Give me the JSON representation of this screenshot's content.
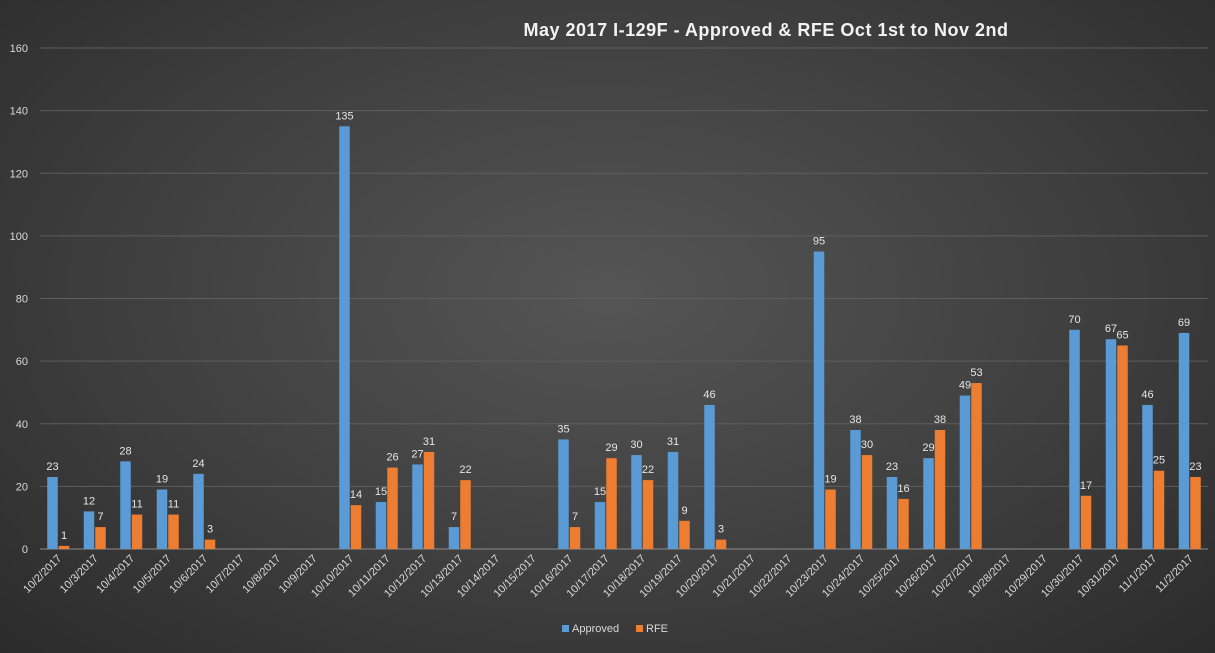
{
  "chart_data": {
    "type": "bar",
    "title": "May 2017 I-129F - Approved  & RFE Oct 1st to Nov 2nd",
    "xlabel": "",
    "ylabel": "",
    "ylim": [
      0,
      160
    ],
    "yticks": [
      0,
      20,
      40,
      60,
      80,
      100,
      120,
      140,
      160
    ],
    "grid": true,
    "legend": "bottom",
    "categories": [
      "10/2/2017",
      "10/3/2017",
      "10/4/2017",
      "10/5/2017",
      "10/6/2017",
      "10/7/2017",
      "10/8/2017",
      "10/9/2017",
      "10/10/2017",
      "10/11/2017",
      "10/12/2017",
      "10/13/2017",
      "10/14/2017",
      "10/15/2017",
      "10/16/2017",
      "10/17/2017",
      "10/18/2017",
      "10/19/2017",
      "10/20/2017",
      "10/21/2017",
      "10/22/2017",
      "10/23/2017",
      "10/24/2017",
      "10/25/2017",
      "10/26/2017",
      "10/27/2017",
      "10/28/2017",
      "10/29/2017",
      "10/30/2017",
      "10/31/2017",
      "11/1/2017",
      "11/2/2017"
    ],
    "series": [
      {
        "name": "Approved",
        "color": "#5b9bd5",
        "values": [
          23,
          12,
          28,
          19,
          24,
          null,
          null,
          null,
          135,
          15,
          27,
          7,
          null,
          null,
          35,
          15,
          30,
          31,
          46,
          null,
          null,
          95,
          38,
          23,
          29,
          49,
          null,
          null,
          70,
          67,
          46,
          69
        ]
      },
      {
        "name": "RFE",
        "color": "#ed7d31",
        "values": [
          1,
          7,
          11,
          11,
          3,
          null,
          null,
          null,
          14,
          26,
          31,
          22,
          null,
          null,
          7,
          29,
          22,
          9,
          3,
          null,
          null,
          19,
          30,
          16,
          38,
          53,
          null,
          null,
          17,
          65,
          25,
          23
        ]
      }
    ]
  }
}
